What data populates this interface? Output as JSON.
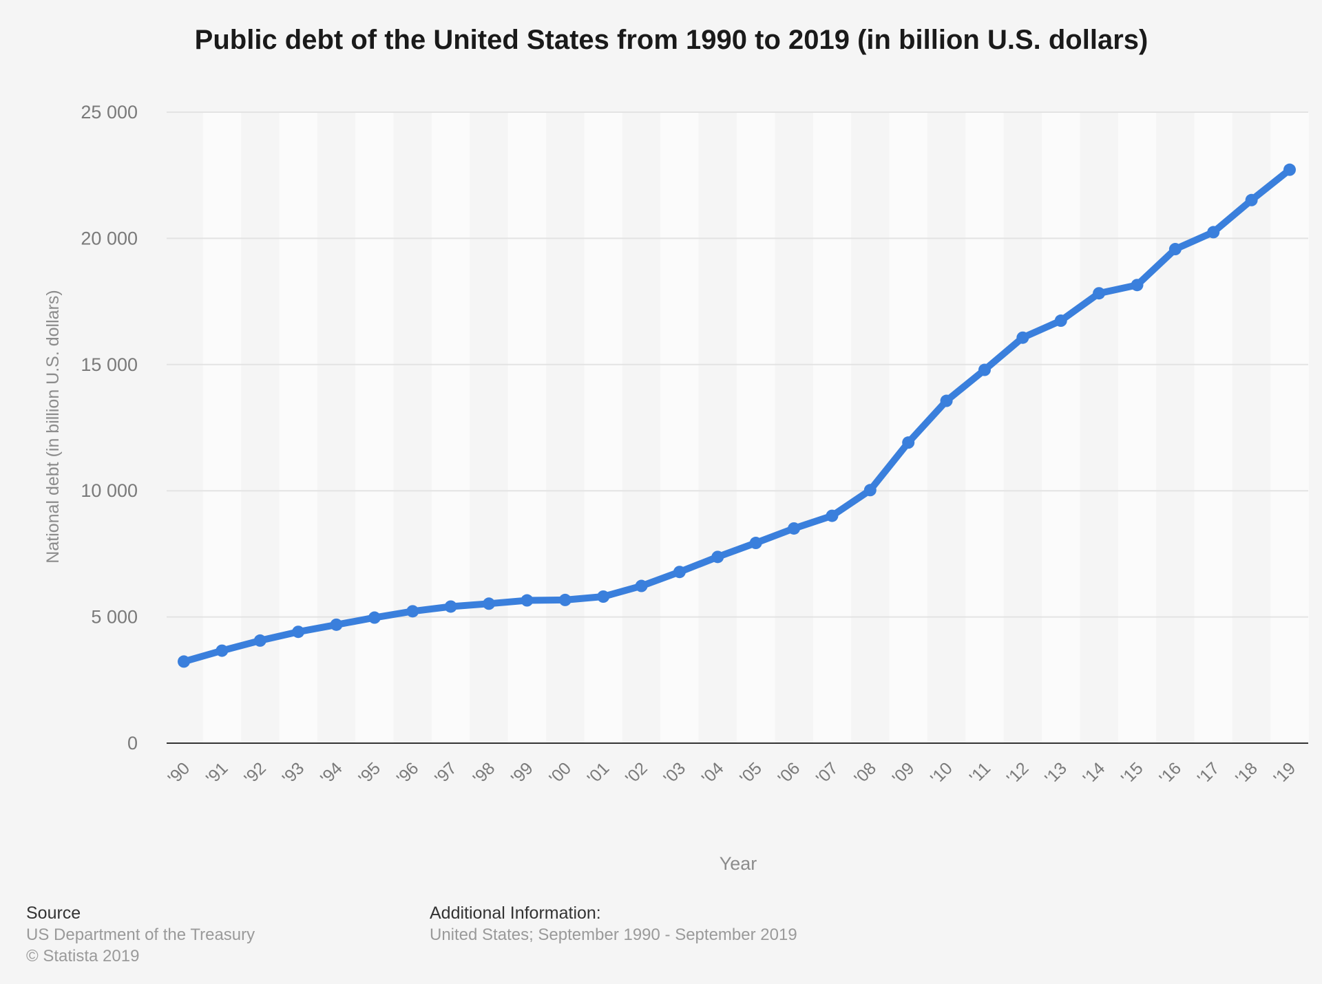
{
  "title": "Public debt of the United States from 1990 to 2019 (in billion U.S. dollars)",
  "source": {
    "heading": "Source",
    "line1": "US Department of the Treasury",
    "line2": "© Statista 2019"
  },
  "additional": {
    "heading": "Additional Information:",
    "line1": "United States; September 1990 - September 2019"
  },
  "colors": {
    "line": "#3a7fdc",
    "grid": "#e3e3e3",
    "band": "#fbfbfb",
    "axis": "#333333"
  },
  "chart_data": {
    "type": "line",
    "title": "Public debt of the United States from 1990 to 2019 (in billion U.S. dollars)",
    "xlabel": "Year",
    "ylabel": "National debt (in billion U.S. dollars)",
    "ylim": [
      0,
      25000
    ],
    "yticks": [
      0,
      5000,
      10000,
      15000,
      20000,
      25000
    ],
    "ytick_labels": [
      "0",
      "5 000",
      "10 000",
      "15 000",
      "20 000",
      "25 000"
    ],
    "grid": true,
    "categories": [
      "'90",
      "'91",
      "'92",
      "'93",
      "'94",
      "'95",
      "'96",
      "'97",
      "'98",
      "'99",
      "'00",
      "'01",
      "'02",
      "'03",
      "'04",
      "'05",
      "'06",
      "'07",
      "'08",
      "'09",
      "'10",
      "'11",
      "'12",
      "'13",
      "'14",
      "'15",
      "'16",
      "'17",
      "'18",
      "'19"
    ],
    "series": [
      {
        "values": [
          3233,
          3665,
          4065,
          4411,
          4693,
          4974,
          5225,
          5413,
          5526,
          5656,
          5674,
          5807,
          6228,
          6783,
          7379,
          7933,
          8507,
          9008,
          10025,
          11910,
          13562,
          14790,
          16066,
          16738,
          17824,
          18151,
          19573,
          20245,
          21516,
          22719
        ]
      }
    ]
  }
}
